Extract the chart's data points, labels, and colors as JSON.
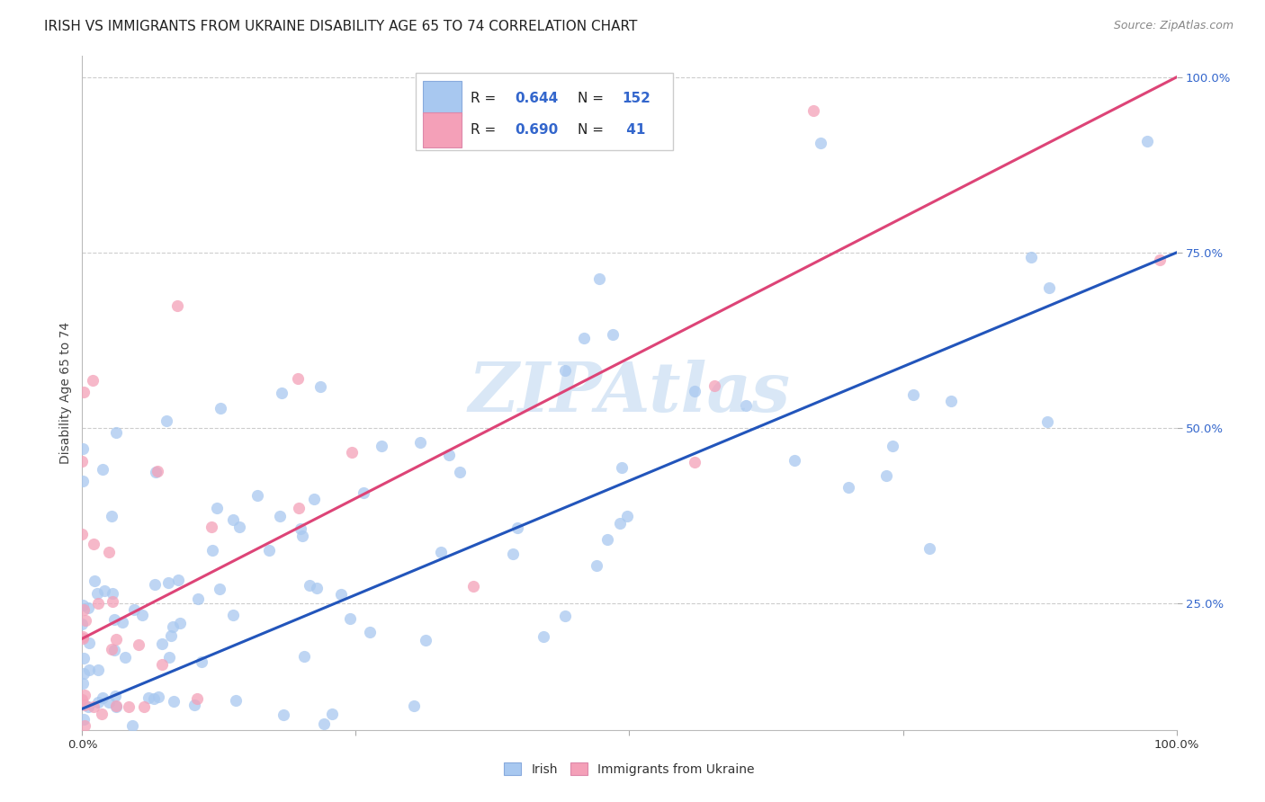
{
  "title": "IRISH VS IMMIGRANTS FROM UKRAINE DISABILITY AGE 65 TO 74 CORRELATION CHART",
  "source": "Source: ZipAtlas.com",
  "ylabel": "Disability Age 65 to 74",
  "irish_R": 0.644,
  "irish_N": 152,
  "ukraine_R": 0.69,
  "ukraine_N": 41,
  "irish_color": "#a8c8f0",
  "ukraine_color": "#f4a0b8",
  "irish_line_color": "#2255bb",
  "ukraine_line_color": "#dd4477",
  "background_color": "#ffffff",
  "grid_color": "#c8c8c8",
  "watermark_color": "#c0d8f0",
  "irish_trend_x0": 0.0,
  "irish_trend_y0": 0.1,
  "irish_trend_x1": 1.0,
  "irish_trend_y1": 0.75,
  "ukraine_trend_x0": 0.0,
  "ukraine_trend_y0": 0.2,
  "ukraine_trend_x1": 1.0,
  "ukraine_trend_y1": 1.0,
  "xlim": [
    0.0,
    1.0
  ],
  "ylim": [
    0.07,
    1.03
  ],
  "yticks": [
    0.25,
    0.5,
    0.75,
    1.0
  ],
  "xtick_positions": [
    0.0,
    0.25,
    0.5,
    0.75,
    1.0
  ],
  "title_fontsize": 11,
  "source_fontsize": 9,
  "axis_label_fontsize": 10,
  "tick_fontsize": 9.5,
  "legend_fontsize": 11,
  "watermark_fontsize": 55
}
